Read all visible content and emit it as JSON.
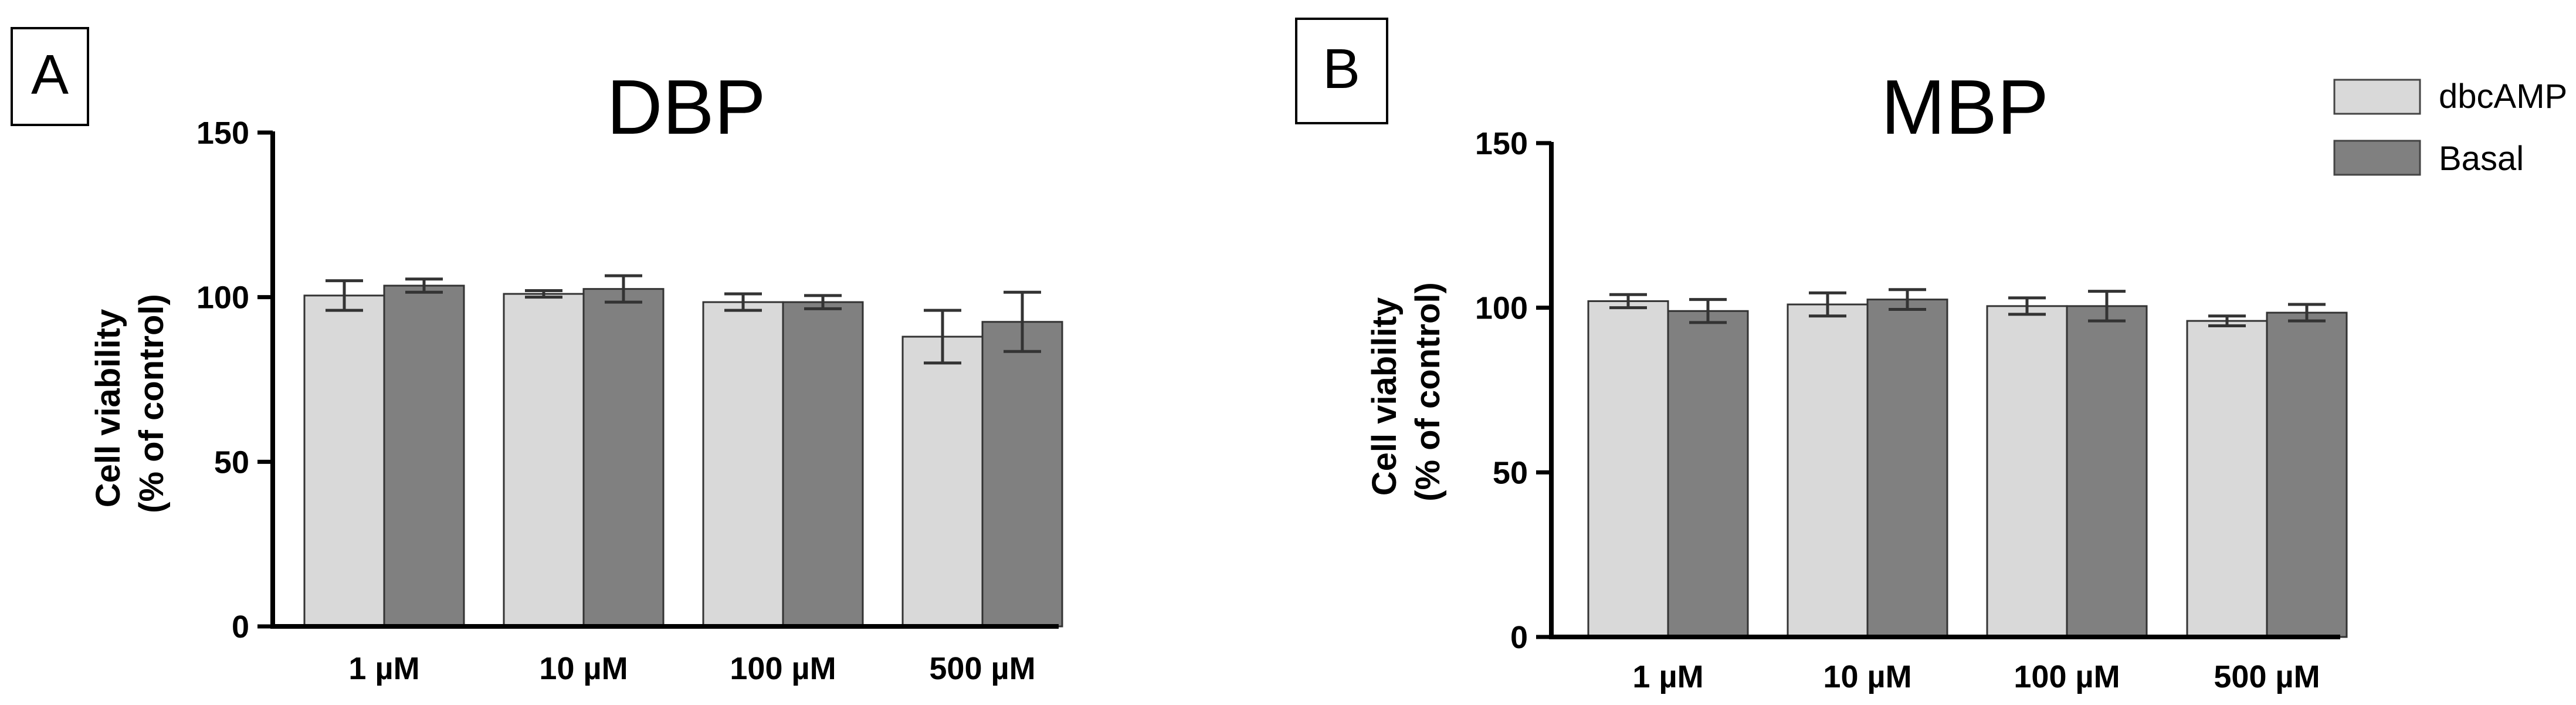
{
  "chart_data": [
    {
      "panel_label": "A",
      "type": "bar",
      "title": "DBP",
      "ylabel_line1": "Cell viability",
      "ylabel_line2": "(% of control)",
      "xlabel": "",
      "ylim": [
        0,
        150
      ],
      "yticks": [
        0,
        50,
        100,
        150
      ],
      "categories": [
        "1 µM",
        "10 µM",
        "100 µM",
        "500 µM"
      ],
      "series": [
        {
          "name": "dbcAMP",
          "color": "#d9d9d9",
          "values": [
            100.5,
            101,
            98.5,
            88
          ],
          "errors": [
            4.5,
            1,
            2.5,
            8
          ]
        },
        {
          "name": "Basal",
          "color": "#808080",
          "values": [
            103.5,
            102.5,
            98.5,
            92.5
          ],
          "errors": [
            2,
            4,
            2,
            9
          ]
        }
      ],
      "legend": "none"
    },
    {
      "panel_label": "B",
      "type": "bar",
      "title": "MBP",
      "ylabel_line1": "Cell viability",
      "ylabel_line2": "(% of control)",
      "xlabel": "",
      "ylim": [
        0,
        150
      ],
      "yticks": [
        0,
        50,
        100,
        150
      ],
      "categories": [
        "1 µM",
        "10 µM",
        "100 µM",
        "500 µM"
      ],
      "series": [
        {
          "name": "dbcAMP",
          "color": "#d9d9d9",
          "values": [
            102,
            101,
            100.5,
            96
          ],
          "errors": [
            2,
            3.5,
            2.5,
            1.5
          ]
        },
        {
          "name": "Basal",
          "color": "#808080",
          "values": [
            99,
            102.5,
            100.5,
            98.5
          ],
          "errors": [
            3.5,
            3,
            4.5,
            2.5
          ]
        }
      ],
      "legend": "top-right"
    }
  ]
}
